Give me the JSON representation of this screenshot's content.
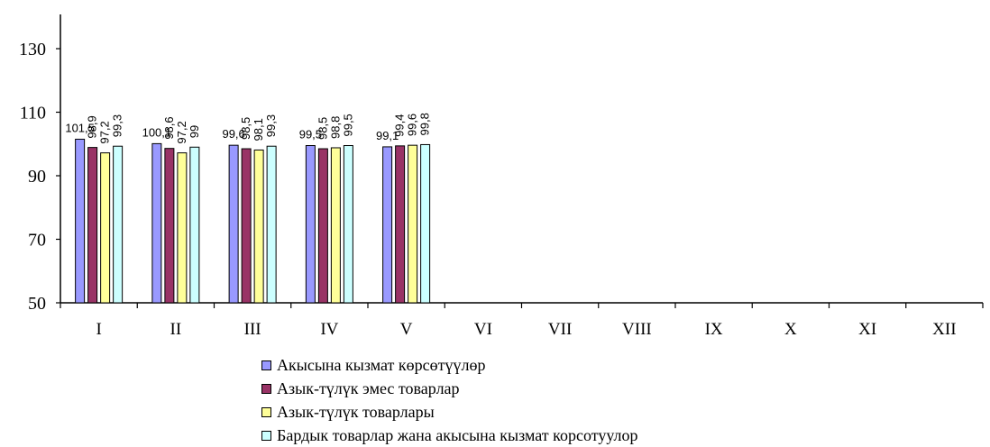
{
  "chart_data": {
    "type": "bar",
    "title": "",
    "xlabel": "",
    "ylabel": "",
    "ylim": [
      50,
      140
    ],
    "yticks": [
      50,
      70,
      90,
      110,
      130
    ],
    "grid": false,
    "legend_position": "bottom",
    "categories": [
      "I",
      "II",
      "III",
      "IV",
      "V",
      "VI",
      "VII",
      "VIII",
      "IX",
      "X",
      "XI",
      "XII"
    ],
    "series": [
      {
        "name": "Акысына кызмат көрсөтүүлөр",
        "color": "#9999ff",
        "values": [
          101.5,
          100.1,
          99.6,
          99.5,
          99.1,
          null,
          null,
          null,
          null,
          null,
          null,
          null
        ],
        "labels": [
          "101,5",
          "100,1",
          "99,6",
          "99,5",
          "99,1",
          null,
          null,
          null,
          null,
          null,
          null,
          null
        ],
        "label_rotated": [
          false,
          false,
          false,
          false,
          false
        ]
      },
      {
        "name": "Азык-түлүк эмес товарлар",
        "color": "#993366",
        "values": [
          98.9,
          98.6,
          98.5,
          98.5,
          99.4,
          null,
          null,
          null,
          null,
          null,
          null,
          null
        ],
        "labels": [
          "98,9",
          "98,6",
          "98,5",
          "98,5",
          "99,4",
          null,
          null,
          null,
          null,
          null,
          null,
          null
        ],
        "label_rotated": [
          true,
          true,
          true,
          true,
          true
        ]
      },
      {
        "name": "Азык-түлүк товарлары",
        "color": "#ffff99",
        "values": [
          97.2,
          97.2,
          98.1,
          98.8,
          99.6,
          null,
          null,
          null,
          null,
          null,
          null,
          null
        ],
        "labels": [
          "97,2",
          "97,2",
          "98,1",
          "98,8",
          "99,6",
          null,
          null,
          null,
          null,
          null,
          null,
          null
        ],
        "label_rotated": [
          true,
          true,
          true,
          true,
          true
        ]
      },
      {
        "name": "Бардык товарлар жана акысына кызмат корсотуулор",
        "color": "#ccffff",
        "values": [
          99.3,
          99.0,
          99.3,
          99.5,
          99.8,
          null,
          null,
          null,
          null,
          null,
          null,
          null
        ],
        "labels": [
          "99,3",
          "99",
          "99,3",
          "99,5",
          "99,8",
          null,
          null,
          null,
          null,
          null,
          null,
          null
        ],
        "label_rotated": [
          true,
          true,
          true,
          true,
          true
        ]
      }
    ]
  },
  "legend": {
    "items": [
      {
        "label": "Акысына кызмат көрсөтүүлөр",
        "color": "#9999ff"
      },
      {
        "label": "Азык-түлүк эмес товарлар",
        "color": "#993366"
      },
      {
        "label": "Азык-түлүк товарлары",
        "color": "#ffff99"
      },
      {
        "label": "Бардык товарлар жана акысына кызмат корсотуулор",
        "color": "#ccffff"
      }
    ]
  }
}
